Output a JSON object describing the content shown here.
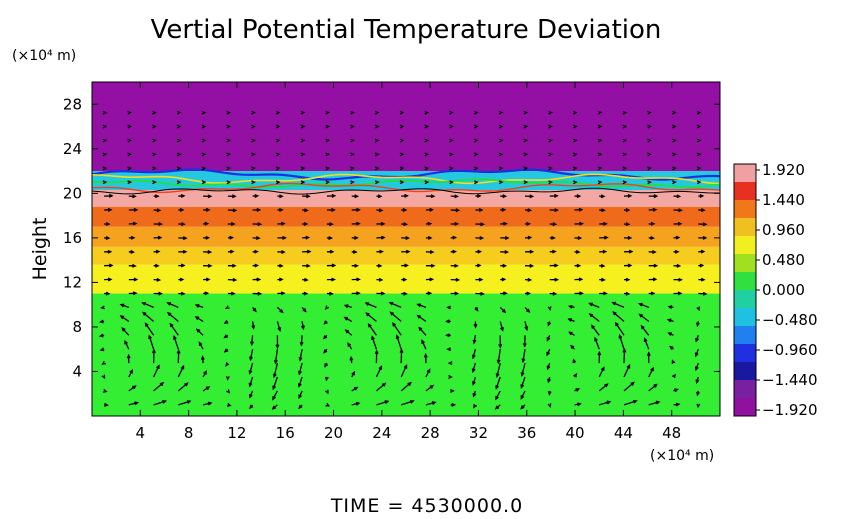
{
  "chart_data": {
    "type": "heatmap",
    "title": "Vertial Potential Temperature Deviation",
    "xlabel": "",
    "ylabel": "Height",
    "x_unit": "(×10⁴ m)",
    "y_unit": "(×10⁴ m)",
    "xlim": [
      0,
      52
    ],
    "ylim": [
      0,
      30
    ],
    "x_ticks": [
      4,
      8,
      12,
      16,
      20,
      24,
      28,
      32,
      36,
      40,
      44,
      48
    ],
    "y_ticks": [
      4,
      8,
      12,
      16,
      20,
      24,
      28
    ],
    "colorbar": {
      "min": -1.92,
      "max": 1.92,
      "labels": [
        "1.920",
        "1.440",
        "0.960",
        "0.480",
        "0.000",
        "−0.480",
        "−0.960",
        "−1.440",
        "−1.920"
      ],
      "colors": [
        "#f0a0a0",
        "#e83020",
        "#f07818",
        "#f0c020",
        "#f0f020",
        "#a0e020",
        "#30e040",
        "#20d0a0",
        "#20c0e0",
        "#2080f0",
        "#2030e0",
        "#1818a0",
        "#7820a0",
        "#9010a0"
      ]
    },
    "bands": [
      {
        "y": [
          0,
          11
        ],
        "value": 0.0,
        "color": "#33ee33"
      },
      {
        "y": [
          11,
          13.6
        ],
        "value": 0.85,
        "color": "#f5f01e"
      },
      {
        "y": [
          13.6,
          15.2
        ],
        "value": 1.05,
        "color": "#f6cc1e"
      },
      {
        "y": [
          15.2,
          17.0
        ],
        "value": 1.3,
        "color": "#f5a21e"
      },
      {
        "y": [
          17.0,
          18.8
        ],
        "value": 1.6,
        "color": "#f06a1c"
      },
      {
        "y": [
          18.8,
          20.3
        ],
        "value": 1.85,
        "color": "#f4a8a4"
      },
      {
        "y": [
          20.3,
          22.0
        ],
        "value": -0.5,
        "color": "#26c8e0"
      },
      {
        "y": [
          22.0,
          30
        ],
        "value": -1.92,
        "color": "#9410a4"
      }
    ],
    "grid": false,
    "legend_position": "right",
    "overlay": "velocity vectors"
  },
  "footer": {
    "time_label": "TIME  =  4530000.0"
  }
}
